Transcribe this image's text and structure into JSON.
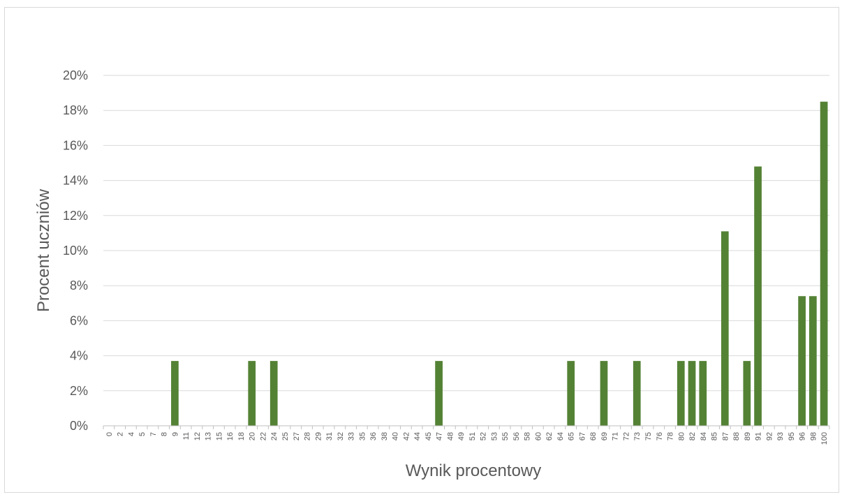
{
  "chart_data": {
    "type": "bar",
    "title": "",
    "xlabel": "Wynik procentowy",
    "ylabel": "Procent uczniów",
    "ylim": [
      0,
      20
    ],
    "yticks": [
      "0%",
      "2%",
      "4%",
      "6%",
      "8%",
      "10%",
      "12%",
      "14%",
      "16%",
      "18%",
      "20%"
    ],
    "grid": true,
    "legend": "none",
    "color": "#548235",
    "categories": [
      "0",
      "2",
      "4",
      "5",
      "7",
      "8",
      "9",
      "11",
      "12",
      "13",
      "15",
      "16",
      "18",
      "20",
      "22",
      "24",
      "25",
      "27",
      "28",
      "29",
      "31",
      "32",
      "33",
      "35",
      "36",
      "38",
      "40",
      "42",
      "44",
      "45",
      "47",
      "48",
      "49",
      "51",
      "52",
      "53",
      "55",
      "56",
      "58",
      "60",
      "62",
      "64",
      "65",
      "67",
      "68",
      "69",
      "71",
      "72",
      "73",
      "75",
      "76",
      "78",
      "80",
      "82",
      "84",
      "85",
      "87",
      "88",
      "89",
      "91",
      "92",
      "93",
      "95",
      "96",
      "98",
      "100"
    ],
    "values": [
      0,
      0,
      0,
      0,
      0,
      0,
      3.7,
      0,
      0,
      0,
      0,
      0,
      0,
      3.7,
      0,
      3.7,
      0,
      0,
      0,
      0,
      0,
      0,
      0,
      0,
      0,
      0,
      0,
      0,
      0,
      0,
      3.7,
      0,
      0,
      0,
      0,
      0,
      0,
      0,
      0,
      0,
      0,
      0,
      3.7,
      0,
      0,
      3.7,
      0,
      0,
      3.7,
      0,
      0,
      0,
      3.7,
      3.7,
      3.7,
      0,
      11.1,
      0,
      3.7,
      14.8,
      0,
      0,
      0,
      7.4,
      7.4,
      18.5
    ]
  }
}
